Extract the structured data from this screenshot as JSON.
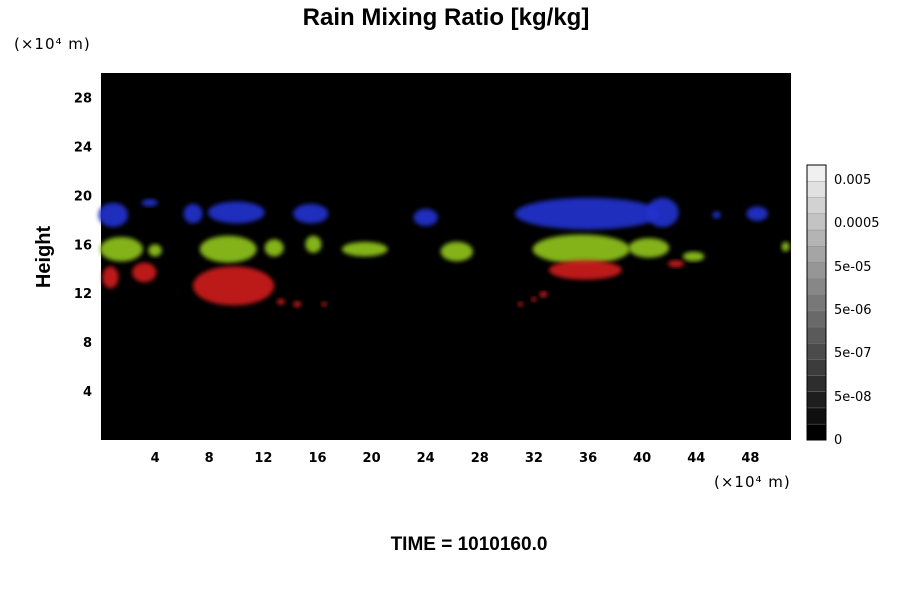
{
  "chart_data": {
    "type": "heatmap",
    "title": "Rain Mixing Ratio [kg/kg]",
    "xlabel": "",
    "ylabel": "Height",
    "x_unit": "(×10⁴ m)",
    "y_unit": "(×10⁴ m)",
    "xlim": [
      0,
      51
    ],
    "ylim": [
      0,
      30
    ],
    "x_ticks": [
      4,
      8,
      12,
      16,
      20,
      24,
      28,
      32,
      36,
      40,
      44,
      48
    ],
    "y_ticks": [
      4,
      8,
      12,
      16,
      20,
      24,
      28
    ],
    "grid": false,
    "background": "#000000",
    "colorbar": {
      "placement": "right",
      "tick_labels": [
        "0.005",
        "0.0005",
        "5e-05",
        "5e-06",
        "5e-07",
        "5e-08",
        "0"
      ]
    },
    "features": [
      {
        "color": "#2233cc",
        "x": [
          0.0,
          51.0
        ],
        "y": [
          17.0,
          20.5
        ]
      },
      {
        "color": "#8fc21f",
        "x": [
          0.0,
          51.0
        ],
        "y": [
          14.0,
          17.0
        ]
      },
      {
        "color": "#cc1a1a",
        "x": [
          0.0,
          44.0
        ],
        "y": [
          11.0,
          15.0
        ]
      }
    ],
    "blobs": [
      {
        "color": "#2233cc",
        "x": 0.9,
        "y": 18.4,
        "rx": 1.1,
        "ry": 1.0
      },
      {
        "color": "#2233cc",
        "x": 3.6,
        "y": 19.4,
        "rx": 0.6,
        "ry": 0.3
      },
      {
        "color": "#2233cc",
        "x": 6.8,
        "y": 18.5,
        "rx": 0.7,
        "ry": 0.8
      },
      {
        "color": "#2233cc",
        "x": 10.0,
        "y": 18.6,
        "rx": 2.1,
        "ry": 0.9
      },
      {
        "color": "#2233cc",
        "x": 15.5,
        "y": 18.5,
        "rx": 1.3,
        "ry": 0.8
      },
      {
        "color": "#2233cc",
        "x": 24.0,
        "y": 18.2,
        "rx": 0.9,
        "ry": 0.7
      },
      {
        "color": "#2233cc",
        "x": 36.0,
        "y": 18.5,
        "rx": 5.4,
        "ry": 1.3
      },
      {
        "color": "#2233cc",
        "x": 41.5,
        "y": 18.6,
        "rx": 1.2,
        "ry": 1.2
      },
      {
        "color": "#2233cc",
        "x": 45.5,
        "y": 18.4,
        "rx": 0.3,
        "ry": 0.3
      },
      {
        "color": "#2233cc",
        "x": 48.5,
        "y": 18.5,
        "rx": 0.8,
        "ry": 0.6
      },
      {
        "color": "#8fc21f",
        "x": 1.5,
        "y": 15.6,
        "rx": 1.6,
        "ry": 1.0
      },
      {
        "color": "#8fc21f",
        "x": 4.0,
        "y": 15.5,
        "rx": 0.5,
        "ry": 0.5
      },
      {
        "color": "#8fc21f",
        "x": 9.4,
        "y": 15.6,
        "rx": 2.1,
        "ry": 1.1
      },
      {
        "color": "#8fc21f",
        "x": 12.8,
        "y": 15.7,
        "rx": 0.7,
        "ry": 0.7
      },
      {
        "color": "#8fc21f",
        "x": 15.7,
        "y": 16.0,
        "rx": 0.6,
        "ry": 0.7
      },
      {
        "color": "#8fc21f",
        "x": 19.5,
        "y": 15.6,
        "rx": 1.7,
        "ry": 0.6
      },
      {
        "color": "#8fc21f",
        "x": 26.3,
        "y": 15.4,
        "rx": 1.2,
        "ry": 0.8
      },
      {
        "color": "#8fc21f",
        "x": 35.5,
        "y": 15.6,
        "rx": 3.6,
        "ry": 1.2
      },
      {
        "color": "#8fc21f",
        "x": 40.5,
        "y": 15.7,
        "rx": 1.5,
        "ry": 0.8
      },
      {
        "color": "#8fc21f",
        "x": 43.8,
        "y": 15.0,
        "rx": 0.8,
        "ry": 0.4
      },
      {
        "color": "#8fc21f",
        "x": 50.6,
        "y": 15.8,
        "rx": 0.3,
        "ry": 0.4
      },
      {
        "color": "#cc1a1a",
        "x": 0.7,
        "y": 13.3,
        "rx": 0.6,
        "ry": 0.9
      },
      {
        "color": "#cc1a1a",
        "x": 3.2,
        "y": 13.7,
        "rx": 0.9,
        "ry": 0.8
      },
      {
        "color": "#cc1a1a",
        "x": 9.8,
        "y": 12.6,
        "rx": 3.0,
        "ry": 1.6
      },
      {
        "color": "#cc1a1a",
        "x": 14.5,
        "y": 11.1,
        "rx": 0.3,
        "ry": 0.25
      },
      {
        "color": "#cc1a1a",
        "x": 13.3,
        "y": 11.3,
        "rx": 0.3,
        "ry": 0.25
      },
      {
        "color": "#cc1a1a",
        "x": 16.5,
        "y": 11.1,
        "rx": 0.2,
        "ry": 0.2
      },
      {
        "color": "#cc1a1a",
        "x": 31.0,
        "y": 11.1,
        "rx": 0.2,
        "ry": 0.2
      },
      {
        "color": "#cc1a1a",
        "x": 32.0,
        "y": 11.5,
        "rx": 0.2,
        "ry": 0.2
      },
      {
        "color": "#cc1a1a",
        "x": 32.7,
        "y": 11.9,
        "rx": 0.3,
        "ry": 0.25
      },
      {
        "color": "#cc1a1a",
        "x": 35.8,
        "y": 13.9,
        "rx": 2.7,
        "ry": 0.8
      },
      {
        "color": "#cc1a1a",
        "x": 42.5,
        "y": 14.4,
        "rx": 0.6,
        "ry": 0.3
      }
    ],
    "time_label": "TIME = 1010160.0"
  }
}
